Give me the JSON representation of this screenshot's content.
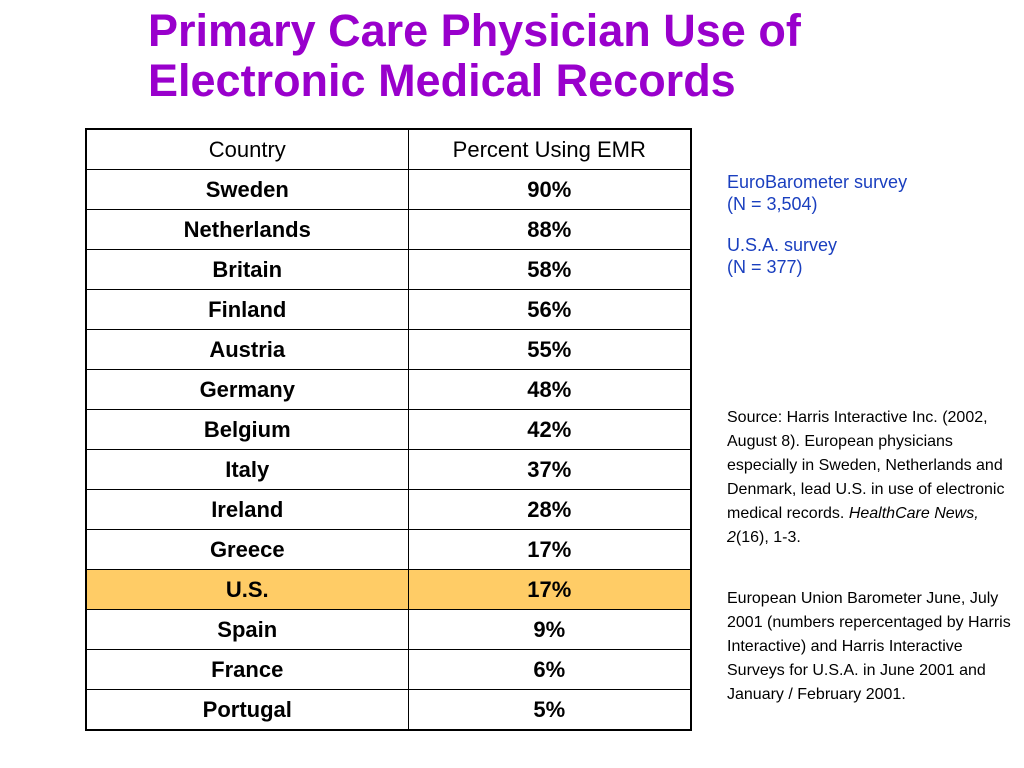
{
  "title": {
    "line1": "Primary Care Physician Use of",
    "line2": "Electronic Medical Records"
  },
  "colors": {
    "title": "#9900cc",
    "survey_text": "#1a3fbf",
    "highlight_row": "#ffcc66"
  },
  "table": {
    "headers": [
      "Country",
      "Percent Using EMR"
    ],
    "rows": [
      {
        "country": "Sweden",
        "percent": "90%"
      },
      {
        "country": "Netherlands",
        "percent": "88%"
      },
      {
        "country": "Britain",
        "percent": "58%"
      },
      {
        "country": "Finland",
        "percent": "56%"
      },
      {
        "country": "Austria",
        "percent": "55%"
      },
      {
        "country": "Germany",
        "percent": "48%"
      },
      {
        "country": "Belgium",
        "percent": "42%"
      },
      {
        "country": "Italy",
        "percent": "37%"
      },
      {
        "country": "Ireland",
        "percent": "28%"
      },
      {
        "country": "Greece",
        "percent": "17%"
      },
      {
        "country": "U.S.",
        "percent": "17%",
        "highlighted": true
      },
      {
        "country": "Spain",
        "percent": "9%"
      },
      {
        "country": "France",
        "percent": "6%"
      },
      {
        "country": "Portugal",
        "percent": "5%"
      }
    ]
  },
  "surveys": {
    "eurobarometer": {
      "name": "EuroBarometer survey",
      "n": "(N = 3,504)"
    },
    "usa": {
      "name": "U.S.A. survey",
      "n": "(N = 377)"
    }
  },
  "source_note": {
    "text": "Source:  Harris Interactive Inc. (2002, August 8).  European physicians especially in Sweden, Netherlands and Denmark, lead U.S. in use of electronic medical records. ",
    "journal": "HealthCare News, 2",
    "citation_tail": "(16), 1-3."
  },
  "eu_barometer_note": "European Union Barometer June, July 2001 (numbers repercentaged by Harris Interactive) and Harris Interactive Surveys for U.S.A. in June 2001 and January / February 2001."
}
